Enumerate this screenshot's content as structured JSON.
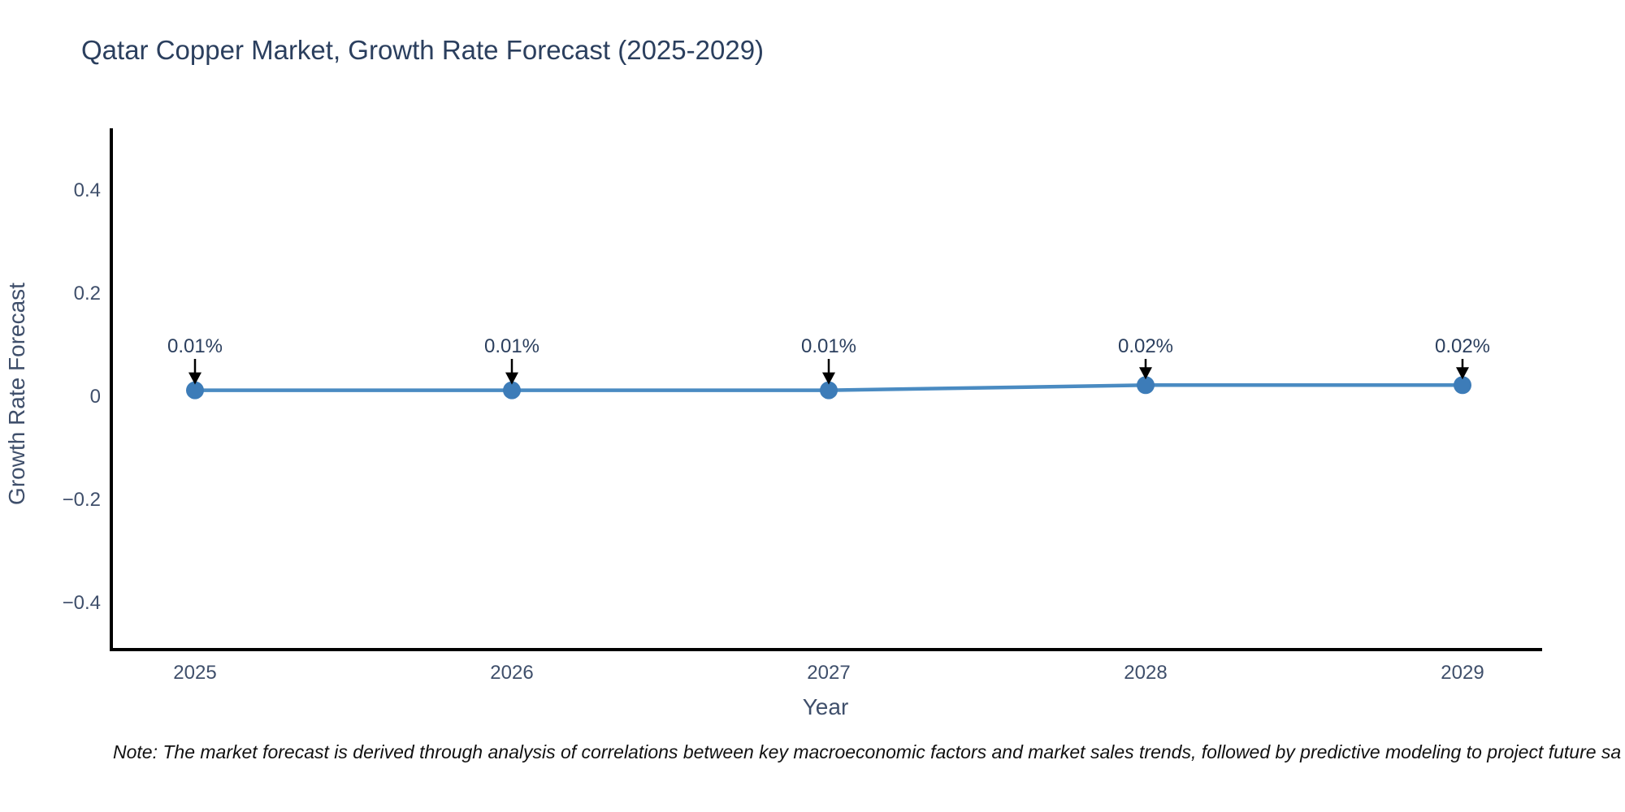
{
  "title": "Qatar Copper Market, Growth Rate Forecast (2025-2029)",
  "note": "Note: The market forecast is derived through analysis of correlations between key macroeconomic factors and market sales trends, followed by predictive modeling to project future sa",
  "chart_data": {
    "type": "line",
    "title": "Qatar Copper Market, Growth Rate Forecast (2025-2029)",
    "xlabel": "Year",
    "ylabel": "Growth Rate Forecast",
    "categories": [
      "2025",
      "2026",
      "2027",
      "2028",
      "2029"
    ],
    "values": [
      0.01,
      0.01,
      0.01,
      0.02,
      0.02
    ],
    "point_labels": [
      "0.01%",
      "0.01%",
      "0.01%",
      "0.02%",
      "0.02%"
    ],
    "yticks": [
      0.4,
      0.2,
      0,
      -0.2,
      -0.4
    ],
    "ytick_labels": [
      "0.4",
      "0.2",
      "0",
      "−0.2",
      "−0.4"
    ],
    "ylim": [
      -0.49,
      0.52
    ],
    "grid": false,
    "legend": "none",
    "colors": {
      "line": "#4a8bc2",
      "marker": "#3d7cb8",
      "axis": "#000000",
      "title_text": "#2b3f5e",
      "tick_text": "#3f4f6b",
      "annotation_text": "#2b3f5e",
      "arrow": "#000000",
      "note_text": "#111111",
      "background": "#ffffff"
    }
  }
}
